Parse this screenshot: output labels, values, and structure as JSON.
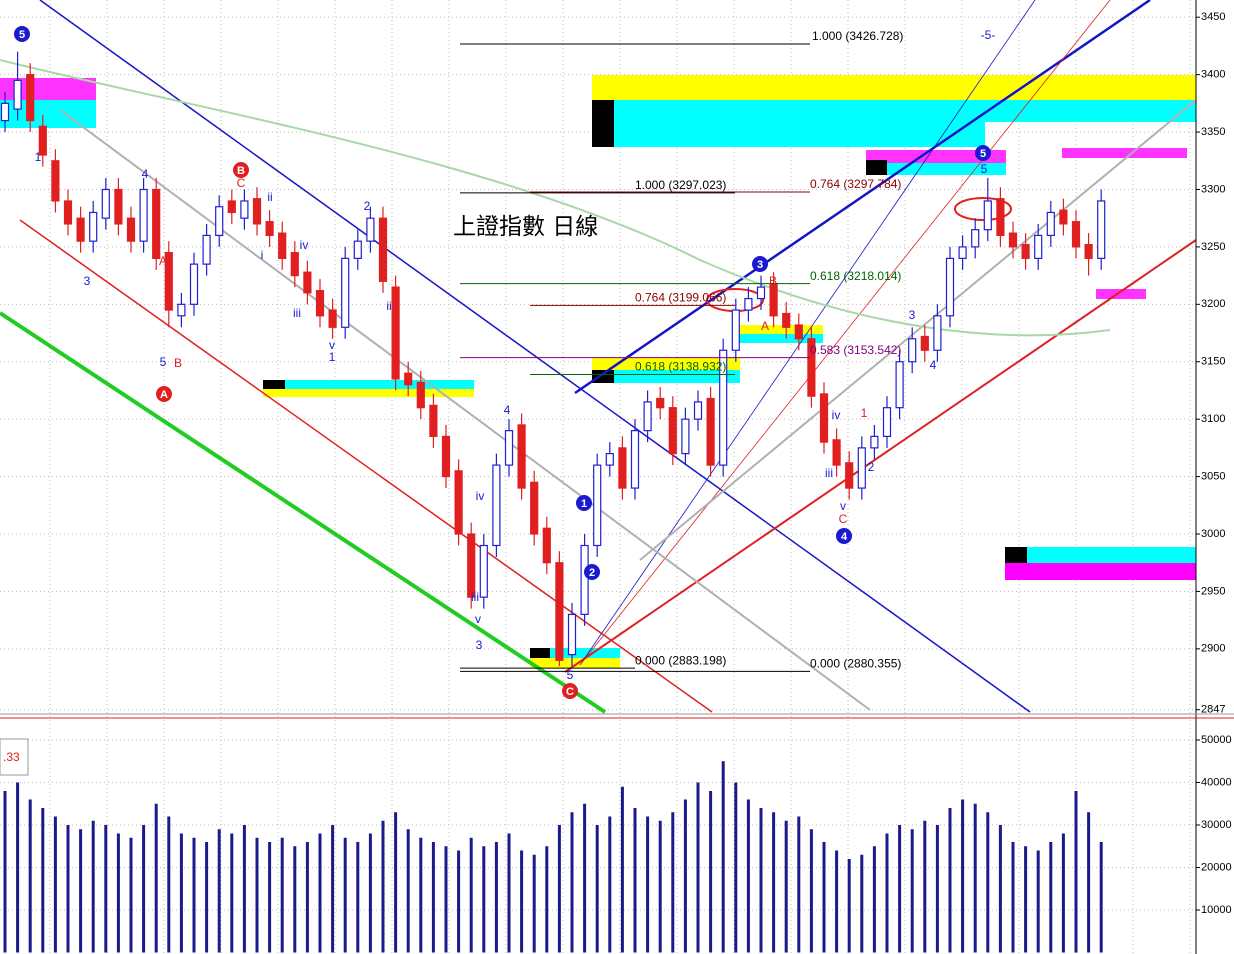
{
  "chart_data": [
    {
      "type": "candlestick",
      "title": "上證指數 日線",
      "open": [
        3360,
        3370,
        3400,
        3355,
        3325,
        3290,
        3275,
        3255,
        3275,
        3300,
        3275,
        3255,
        3300,
        3245,
        3190,
        3200,
        3235,
        3260,
        3290,
        3275,
        3292,
        3272,
        3262,
        3245,
        3228,
        3212,
        3195,
        3180,
        3240,
        3255,
        3275,
        3215,
        3140,
        3132,
        3112,
        3085,
        3055,
        3000,
        2945,
        2990,
        3060,
        3095,
        3045,
        3005,
        2975,
        2895,
        2930,
        2990,
        3060,
        3075,
        3040,
        3090,
        3118,
        3110,
        3070,
        3100,
        3118,
        3060,
        3160,
        3195,
        3205,
        3218,
        3192,
        3182,
        3170,
        3122,
        3082,
        3062,
        3040,
        3075,
        3085,
        3110,
        3150,
        3172,
        3160,
        3190,
        3240,
        3250,
        3265,
        3292,
        3262,
        3252,
        3240,
        3260,
        3282,
        3272,
        3252,
        3240
      ],
      "high": [
        3385,
        3420,
        3410,
        3365,
        3335,
        3300,
        3285,
        3290,
        3310,
        3310,
        3285,
        3310,
        3310,
        3255,
        3210,
        3245,
        3270,
        3295,
        3300,
        3300,
        3302,
        3282,
        3272,
        3255,
        3238,
        3222,
        3205,
        3250,
        3265,
        3285,
        3285,
        3225,
        3150,
        3142,
        3122,
        3095,
        3065,
        3010,
        3000,
        3070,
        3100,
        3105,
        3055,
        3015,
        2985,
        2940,
        3000,
        3070,
        3080,
        3085,
        3100,
        3125,
        3128,
        3120,
        3110,
        3125,
        3128,
        3170,
        3205,
        3215,
        3225,
        3228,
        3202,
        3192,
        3180,
        3132,
        3092,
        3072,
        3085,
        3095,
        3120,
        3160,
        3180,
        3182,
        3200,
        3250,
        3260,
        3275,
        3310,
        3302,
        3272,
        3262,
        3270,
        3290,
        3292,
        3282,
        3262,
        3300
      ],
      "low": [
        3350,
        3360,
        3350,
        3320,
        3280,
        3260,
        3245,
        3245,
        3265,
        3260,
        3245,
        3245,
        3230,
        3180,
        3180,
        3190,
        3225,
        3250,
        3270,
        3265,
        3260,
        3250,
        3230,
        3215,
        3200,
        3180,
        3170,
        3170,
        3230,
        3245,
        3210,
        3125,
        3120,
        3100,
        3075,
        3040,
        2990,
        2935,
        2935,
        2980,
        3050,
        3030,
        2990,
        2965,
        2885,
        2885,
        2920,
        2980,
        3050,
        3030,
        3030,
        3080,
        3100,
        3060,
        3060,
        3090,
        3050,
        3050,
        3150,
        3185,
        3195,
        3180,
        3170,
        3160,
        3110,
        3070,
        3050,
        3030,
        3030,
        3065,
        3075,
        3100,
        3140,
        3150,
        3150,
        3180,
        3230,
        3240,
        3255,
        3250,
        3240,
        3230,
        3230,
        3250,
        3260,
        3240,
        3225,
        3230
      ],
      "close": [
        3375,
        3395,
        3360,
        3330,
        3290,
        3270,
        3255,
        3280,
        3300,
        3270,
        3255,
        3300,
        3240,
        3195,
        3200,
        3235,
        3260,
        3285,
        3280,
        3290,
        3270,
        3260,
        3240,
        3225,
        3210,
        3190,
        3180,
        3240,
        3255,
        3275,
        3220,
        3135,
        3130,
        3110,
        3085,
        3050,
        3000,
        2945,
        2990,
        3060,
        3090,
        3040,
        3000,
        2975,
        2890,
        2930,
        2990,
        3060,
        3070,
        3040,
        3090,
        3115,
        3110,
        3070,
        3100,
        3115,
        3060,
        3160,
        3195,
        3205,
        3215,
        3190,
        3180,
        3170,
        3120,
        3080,
        3060,
        3040,
        3075,
        3085,
        3110,
        3150,
        3170,
        3160,
        3190,
        3240,
        3250,
        3265,
        3290,
        3260,
        3250,
        3240,
        3260,
        3280,
        3270,
        3250,
        3240,
        3290
      ],
      "up_color": "#2020d0",
      "down_color": "#e02020",
      "ylim": [
        2845,
        3465
      ],
      "yticks": [
        3450,
        3400,
        3350,
        3300,
        3250,
        3200,
        3150,
        3100,
        3050,
        3000,
        2950,
        2900,
        2847
      ],
      "grid": true,
      "fib": [
        {
          "value": 3426.728,
          "label": "1.000 (3426.728)",
          "color": "#000000"
        },
        {
          "value": 3297.023,
          "label": "1.000 (3297.023)",
          "color": "#000000"
        },
        {
          "value": 3297.784,
          "label": "0.764 (3297.784)",
          "color": "#8b0000"
        },
        {
          "value": 3218.014,
          "label": "0.618 (3218.014)",
          "color": "#006400"
        },
        {
          "value": 3199.066,
          "label": "0.764 (3199.066)",
          "color": "#8b0000"
        },
        {
          "value": 3153.542,
          "label": "0.583 (3153.542)",
          "color": "#800080"
        },
        {
          "value": 3138.932,
          "label": "0.618 (3138.932)",
          "color": "#006400"
        },
        {
          "value": 2883.198,
          "label": "0.000 (2883.198)",
          "color": "#000000"
        },
        {
          "value": 2880.355,
          "label": "0.000 (2880.355)",
          "color": "#000000"
        }
      ],
      "annotations": [
        {
          "text": "5",
          "circled": true,
          "color": "#1a1ad0"
        },
        {
          "text": "A",
          "circled": true,
          "color": "#e02020"
        },
        {
          "text": "B",
          "circled": true,
          "color": "#e02020"
        },
        {
          "text": "C",
          "circled": true,
          "color": "#e02020"
        },
        {
          "text": "1",
          "circled": true,
          "color": "#1a1ad0"
        },
        {
          "text": "2",
          "circled": true,
          "color": "#1a1ad0"
        },
        {
          "text": "3",
          "circled": true,
          "color": "#1a1ad0"
        },
        {
          "text": "4",
          "circled": true,
          "color": "#1a1ad0"
        },
        {
          "text": "5",
          "circled": true,
          "color": "#1a1ad0"
        },
        {
          "text": "1",
          "circled": false,
          "color": "#1a1ad0"
        },
        {
          "text": "3",
          "circled": false,
          "color": "#1a1ad0"
        },
        {
          "text": "4",
          "circled": false,
          "color": "#1a1ad0"
        },
        {
          "text": "5",
          "circled": false,
          "color": "#1a1ad0"
        },
        {
          "text": "B",
          "circled": false,
          "color": "#e02020"
        },
        {
          "text": "A",
          "circled": false,
          "color": "#e02020"
        },
        {
          "text": "C",
          "circled": false,
          "color": "#e02020"
        },
        {
          "text": "2",
          "circled": false,
          "color": "#1a1ad0"
        },
        {
          "text": "iii",
          "circled": false,
          "color": "#1a1ad0"
        },
        {
          "text": "v",
          "circled": false,
          "color": "#1a1ad0"
        },
        {
          "text": "3",
          "circled": false,
          "color": "#1a1ad0"
        },
        {
          "text": "iv",
          "circled": false,
          "color": "#1a1ad0"
        },
        {
          "text": "4",
          "circled": false,
          "color": "#1a1ad0"
        },
        {
          "text": "5",
          "circled": false,
          "color": "#1a1ad0"
        },
        {
          "text": "B",
          "circled": false,
          "color": "#e02020"
        },
        {
          "text": "A",
          "circled": false,
          "color": "#e02020"
        },
        {
          "text": "5",
          "circled": false,
          "color": "#1a1ad0"
        },
        {
          "text": "3",
          "circled": false,
          "color": "#1a1ad0"
        },
        {
          "text": "4",
          "circled": false,
          "color": "#1a1ad0"
        },
        {
          "text": "1",
          "circled": false,
          "color": "#e02020"
        },
        {
          "text": "2",
          "circled": false,
          "color": "#1a1ad0"
        },
        {
          "text": "iv",
          "circled": false,
          "color": "#1a1ad0"
        },
        {
          "text": "iii",
          "circled": false,
          "color": "#1a1ad0"
        },
        {
          "text": "v",
          "circled": false,
          "color": "#1a1ad0"
        },
        {
          "text": "C",
          "circled": false,
          "color": "#e02020"
        },
        {
          "text": "-5-",
          "circled": false,
          "color": "#1a1ad0"
        },
        {
          "text": "ii",
          "circled": false,
          "color": "#1a1ad0"
        },
        {
          "text": "iv",
          "circled": false,
          "color": "#1a1ad0"
        },
        {
          "text": "iii",
          "circled": false,
          "color": "#1a1ad0"
        },
        {
          "text": "v",
          "circled": false,
          "color": "#1a1ad0"
        },
        {
          "text": "1",
          "circled": false,
          "color": "#1a1ad0"
        },
        {
          "text": "i",
          "circled": false,
          "color": "#1a1ad0"
        },
        {
          "text": "ii",
          "circled": false,
          "color": "#1a1ad0"
        }
      ]
    },
    {
      "type": "bar",
      "values": [
        38000,
        40000,
        36000,
        34000,
        32000,
        30000,
        29000,
        31000,
        30000,
        28000,
        27000,
        30000,
        35000,
        32000,
        28000,
        27000,
        26000,
        29000,
        28000,
        30000,
        27000,
        26000,
        27000,
        25000,
        26000,
        28000,
        30000,
        27000,
        26000,
        28000,
        31000,
        33000,
        29000,
        27000,
        26000,
        25000,
        24000,
        27000,
        25000,
        26000,
        28000,
        24000,
        23000,
        25000,
        30000,
        33000,
        35000,
        30000,
        32000,
        39000,
        34000,
        32000,
        31000,
        33000,
        36000,
        40000,
        38000,
        45000,
        40000,
        36000,
        34000,
        33000,
        31000,
        32000,
        29000,
        26000,
        24000,
        22000,
        23000,
        25000,
        28000,
        30000,
        29000,
        31000,
        30000,
        34000,
        36000,
        35000,
        33000,
        30000,
        26000,
        25000,
        24000,
        26000,
        28000,
        38000,
        33000,
        26000
      ],
      "color": "#1a1a8c",
      "label": ".33",
      "ylim": [
        0,
        54700
      ],
      "yticks": [
        10000,
        20000,
        30000,
        40000,
        50000
      ],
      "grid": true
    }
  ]
}
